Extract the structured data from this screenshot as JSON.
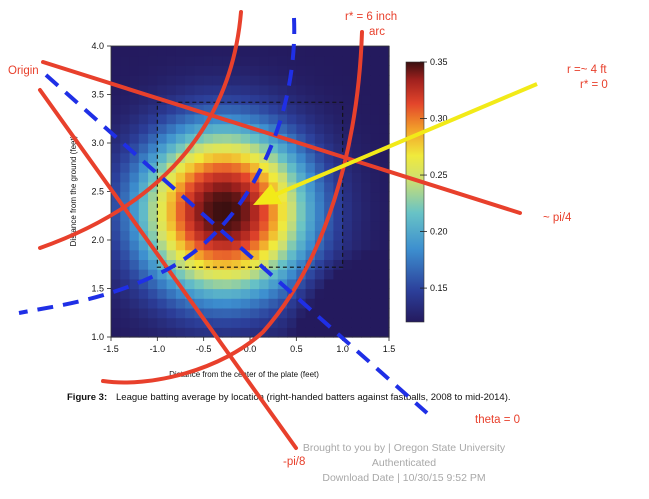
{
  "chart_data": {
    "type": "heatmap",
    "title": "",
    "xlabel": "Distance from the center of the plate (feet)",
    "ylabel": "Distance from the ground (feet)",
    "xlim": [
      -1.5,
      1.5
    ],
    "ylim": [
      1.0,
      4.0
    ],
    "x_ticks": [
      "-1.5",
      "-1.0",
      "-0.5",
      "0.0",
      "0.5",
      "1.0",
      "1.5"
    ],
    "y_ticks": [
      "1.0",
      "1.5",
      "2.0",
      "2.5",
      "3.0",
      "3.5",
      "4.0"
    ],
    "colorbar": {
      "range": [
        0.12,
        0.35
      ],
      "ticks": [
        "0.35",
        "0.30",
        "0.25",
        "0.20",
        "0.15"
      ]
    },
    "peak": {
      "x": -0.28,
      "y": 2.3,
      "value": 0.35
    },
    "strike_zone": {
      "x": [
        -1.0,
        1.0
      ],
      "y": [
        1.72,
        3.42
      ]
    },
    "grid": false
  },
  "caption": {
    "label": "Figure 3:",
    "text": "League batting average by location (right-handed batters against fastballs, 2008 to mid-2014)."
  },
  "annotations": {
    "origin": "Origin",
    "r_star_6": "r* = 6 inch",
    "arc": "arc",
    "r_4ft": "r =~ 4 ft",
    "r_star_0": "r* = 0",
    "pi4": "~ pi/4",
    "theta0": "theta = 0",
    "pi8": "-pi/8"
  },
  "footer": {
    "line1": "Brought to you by | Oregon State University",
    "line2": "Authenticated",
    "line3": "Download Date | 10/30/15 9:52 PM"
  },
  "colors": {
    "annotation_red": "#e8402c",
    "annotation_blue": "#1f2fe6",
    "annotation_yellow": "#f2ea18"
  }
}
